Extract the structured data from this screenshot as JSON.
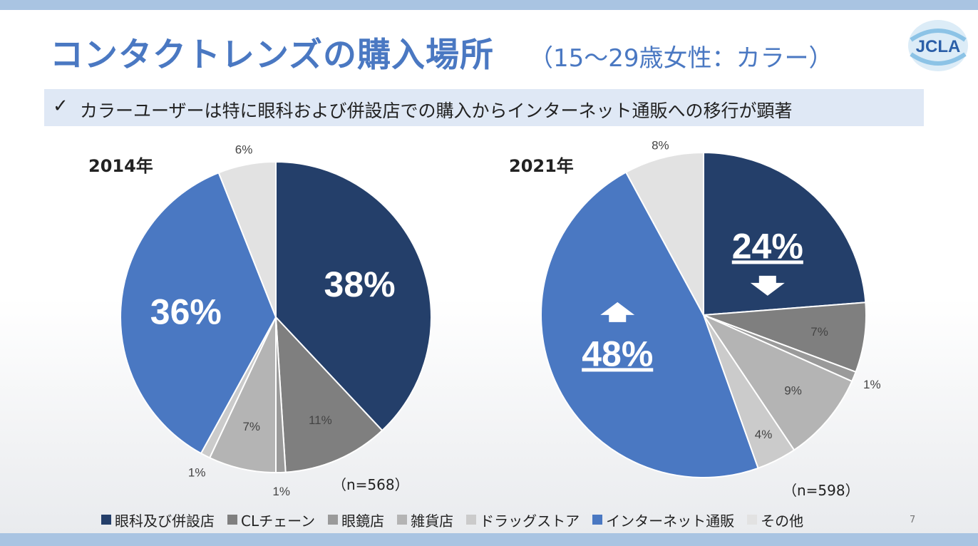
{
  "title": "コンタクトレンズの購入場所",
  "subtitle": "（15～29歳女性：カラー）",
  "logo_text": "JCLA",
  "banner": {
    "check": "✓",
    "text": "カラーユーザーは特に眼科および併設店での購入からインターネット通販への移行が顕著"
  },
  "page_number": "7",
  "colors": {
    "眼科及び併設店": "#243f6a",
    "CLチェーン": "#7f7f7f",
    "眼鏡店": "#9a9a9a",
    "雑貨店": "#b4b4b4",
    "ドラッグストア": "#cbcbcb",
    "インターネット通販": "#4a78c2",
    "その他": "#e2e2e2"
  },
  "chart_data": [
    {
      "type": "pie",
      "title": "2014年",
      "n_label": "（n=568）",
      "slices": [
        {
          "category": "眼科及び併設店",
          "value": 38,
          "label": "38%",
          "emphasis": true
        },
        {
          "category": "CLチェーン",
          "value": 11,
          "label": "11%"
        },
        {
          "category": "眼鏡店",
          "value": 1,
          "label": "1%"
        },
        {
          "category": "雑貨店",
          "value": 7,
          "label": "7%"
        },
        {
          "category": "ドラッグストア",
          "value": 1,
          "label": "1%"
        },
        {
          "category": "インターネット通販",
          "value": 36,
          "label": "36%",
          "emphasis": true
        },
        {
          "category": "その他",
          "value": 6,
          "label": "6%"
        }
      ]
    },
    {
      "type": "pie",
      "title": "2021年",
      "n_label": "（n=598）",
      "slices": [
        {
          "category": "眼科及び併設店",
          "value": 24,
          "label": "24%",
          "emphasis": true,
          "trend": "down"
        },
        {
          "category": "CLチェーン",
          "value": 7,
          "label": "7%"
        },
        {
          "category": "眼鏡店",
          "value": 1,
          "label": "1%"
        },
        {
          "category": "雑貨店",
          "value": 9,
          "label": "9%"
        },
        {
          "category": "ドラッグストア",
          "value": 4,
          "label": "4%"
        },
        {
          "category": "インターネット通販",
          "value": 48,
          "label": "48%",
          "emphasis": true,
          "trend": "up"
        },
        {
          "category": "その他",
          "value": 8,
          "label": "8%"
        }
      ]
    }
  ],
  "legend": [
    "眼科及び併設店",
    "CLチェーン",
    "眼鏡店",
    "雑貨店",
    "ドラッグストア",
    "インターネット通販",
    "その他"
  ]
}
